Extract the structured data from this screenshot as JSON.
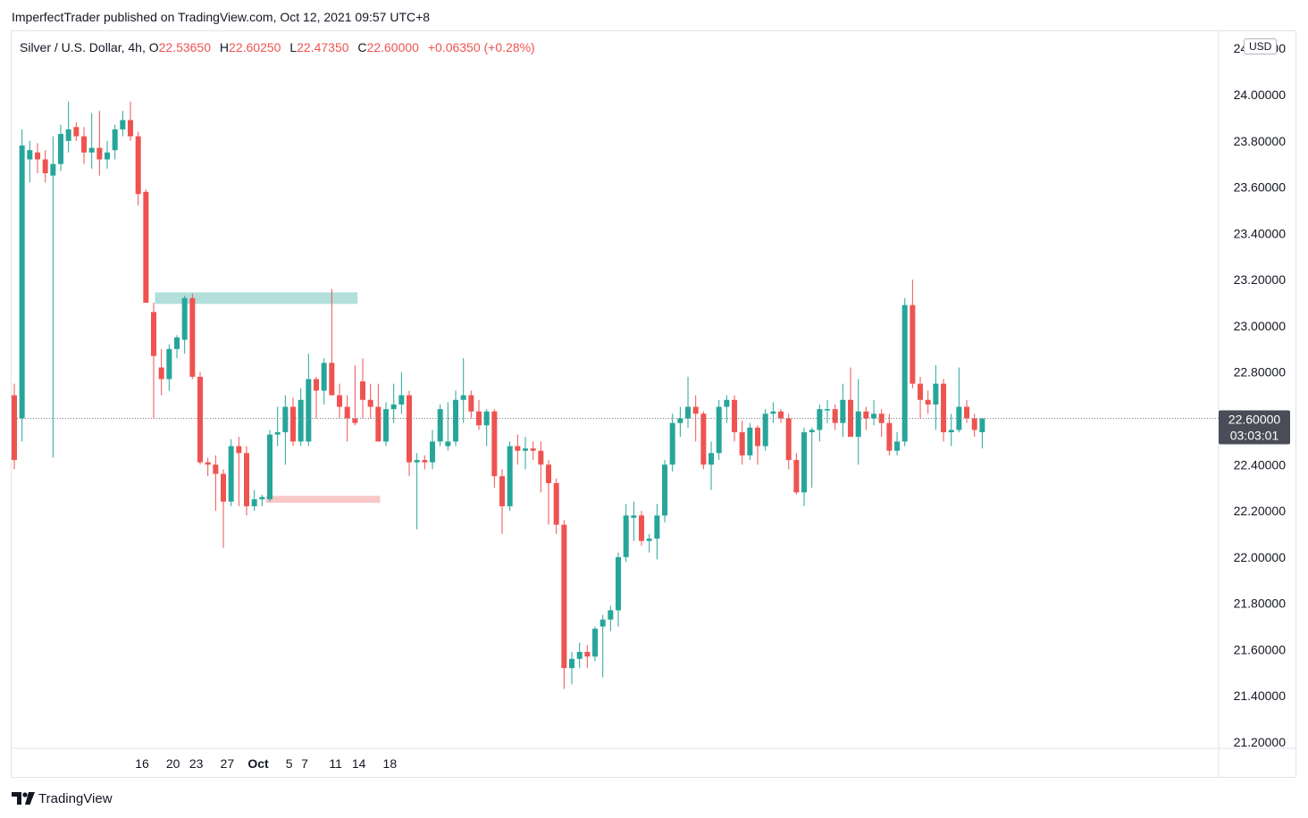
{
  "header": {
    "published_line": "ImperfectTrader published on TradingView.com, Oct 12, 2021 09:57 UTC+8"
  },
  "legend": {
    "symbol": "Silver / U.S. Dollar, 4h,",
    "open_label": "O",
    "open_value": "22.53650",
    "high_label": "H",
    "high_value": "22.60250",
    "low_label": "L",
    "low_value": "22.47350",
    "close_label": "C",
    "close_value": "22.60000",
    "change": "+0.06350 (+0.28%)"
  },
  "currency_badge": "USD",
  "footer": {
    "brand": "TradingView"
  },
  "colors": {
    "up": "#26a69a",
    "down": "#ef5350",
    "resistance_zone": "#b2dfdb",
    "support_zone": "#f8c8c8",
    "price_label_bg": "#4a4d57",
    "grid": "#e0e3eb"
  },
  "chart_data": {
    "type": "candlestick",
    "timeframe": "4h",
    "y_axis": {
      "range": [
        21.2,
        24.2
      ],
      "tick_labels": [
        "24.00000",
        "23.80000",
        "23.60000",
        "23.40000",
        "23.20000",
        "23.00000",
        "22.80000",
        "22.60000",
        "22.40000",
        "22.20000",
        "22.00000",
        "21.80000",
        "21.60000",
        "21.40000",
        "21.20000"
      ],
      "tick_values": [
        24.0,
        23.8,
        23.6,
        23.4,
        23.2,
        23.0,
        22.8,
        22.6,
        22.4,
        22.2,
        22.0,
        21.8,
        21.6,
        21.4,
        21.2
      ],
      "top_partial_label": "24.20000"
    },
    "x_axis": {
      "range": [
        13.5,
        19.25
      ],
      "tick_labels": [
        "16",
        "20",
        "23",
        "27",
        "Oct",
        "5",
        "7",
        "11",
        "14",
        "18"
      ],
      "tick_positions": [
        16.5,
        20.5,
        23.5,
        27.5,
        31.5,
        35.5,
        37.5,
        41.5,
        44.5,
        48.5
      ]
    },
    "last_price": {
      "value": 22.6,
      "label": "22.60000",
      "countdown": "03:03:01"
    },
    "zones": [
      {
        "name": "resistance",
        "from_x": 18.167,
        "to_x": 44.333,
        "low": 23.095,
        "high": 23.145
      },
      {
        "name": "support",
        "from_x": 32.5,
        "to_x": 47.25,
        "low": 22.235,
        "high": 22.265
      }
    ],
    "candles": [
      [
        22.7,
        22.75,
        22.38,
        22.42
      ],
      [
        22.6,
        23.85,
        22.5,
        23.78
      ],
      [
        23.72,
        23.8,
        23.62,
        23.76
      ],
      [
        23.75,
        23.79,
        23.66,
        23.72
      ],
      [
        23.72,
        23.76,
        23.62,
        23.66
      ],
      [
        23.65,
        23.82,
        22.43,
        23.7
      ],
      [
        23.7,
        23.87,
        23.67,
        23.83
      ],
      [
        23.8,
        23.97,
        23.75,
        23.85
      ],
      [
        23.86,
        23.88,
        23.8,
        23.82
      ],
      [
        23.82,
        23.86,
        23.7,
        23.75
      ],
      [
        23.75,
        23.92,
        23.68,
        23.77
      ],
      [
        23.77,
        23.93,
        23.65,
        23.72
      ],
      [
        23.72,
        23.8,
        23.68,
        23.75
      ],
      [
        23.76,
        23.87,
        23.72,
        23.85
      ],
      [
        23.85,
        23.93,
        23.82,
        23.89
      ],
      [
        23.89,
        23.97,
        23.8,
        23.82
      ],
      [
        23.82,
        23.84,
        23.52,
        23.57
      ],
      [
        23.58,
        23.59,
        23.1,
        23.1
      ],
      [
        23.06,
        23.1,
        22.6,
        22.87
      ],
      [
        22.82,
        22.9,
        22.7,
        22.77
      ],
      [
        22.77,
        22.92,
        22.72,
        22.9
      ],
      [
        22.9,
        22.96,
        22.86,
        22.95
      ],
      [
        22.94,
        23.13,
        22.88,
        23.12
      ],
      [
        23.12,
        23.14,
        22.77,
        22.78
      ],
      [
        22.78,
        22.8,
        22.4,
        22.41
      ],
      [
        22.41,
        22.43,
        22.35,
        22.4
      ],
      [
        22.4,
        22.44,
        22.2,
        22.36
      ],
      [
        22.36,
        22.38,
        22.04,
        22.24
      ],
      [
        22.24,
        22.51,
        22.22,
        22.48
      ],
      [
        22.48,
        22.52,
        22.22,
        22.45
      ],
      [
        22.45,
        22.48,
        22.18,
        22.22
      ],
      [
        22.22,
        22.29,
        22.2,
        22.25
      ],
      [
        22.25,
        22.27,
        22.22,
        22.26
      ],
      [
        22.25,
        22.55,
        22.24,
        22.53
      ],
      [
        22.53,
        22.65,
        22.48,
        22.54
      ],
      [
        22.54,
        22.7,
        22.4,
        22.65
      ],
      [
        22.65,
        22.69,
        22.48,
        22.5
      ],
      [
        22.5,
        22.73,
        22.48,
        22.68
      ],
      [
        22.5,
        22.88,
        22.48,
        22.77
      ],
      [
        22.77,
        22.78,
        22.6,
        22.72
      ],
      [
        22.72,
        22.86,
        22.66,
        22.84
      ],
      [
        22.84,
        23.16,
        22.7,
        22.7
      ],
      [
        22.7,
        22.75,
        22.6,
        22.65
      ],
      [
        22.65,
        22.7,
        22.5,
        22.6
      ],
      [
        22.6,
        22.83,
        22.57,
        22.58
      ],
      [
        22.76,
        22.86,
        22.6,
        22.68
      ],
      [
        22.68,
        22.75,
        22.6,
        22.65
      ],
      [
        22.65,
        22.75,
        22.52,
        22.5
      ],
      [
        22.5,
        22.67,
        22.48,
        22.64
      ],
      [
        22.64,
        22.75,
        22.58,
        22.66
      ],
      [
        22.66,
        22.8,
        22.62,
        22.7
      ],
      [
        22.7,
        22.72,
        22.35,
        22.41
      ],
      [
        22.41,
        22.45,
        22.12,
        22.42
      ],
      [
        22.42,
        22.44,
        22.38,
        22.41
      ],
      [
        22.41,
        22.55,
        22.38,
        22.5
      ],
      [
        22.5,
        22.66,
        22.48,
        22.64
      ],
      [
        22.48,
        22.67,
        22.46,
        22.5
      ],
      [
        22.5,
        22.72,
        22.48,
        22.68
      ],
      [
        22.68,
        22.86,
        22.58,
        22.7
      ],
      [
        22.7,
        22.72,
        22.6,
        22.63
      ],
      [
        22.63,
        22.68,
        22.55,
        22.57
      ],
      [
        22.57,
        22.64,
        22.48,
        22.63
      ],
      [
        22.63,
        22.64,
        22.3,
        22.35
      ],
      [
        22.35,
        22.38,
        22.1,
        22.22
      ],
      [
        22.22,
        22.5,
        22.2,
        22.48
      ],
      [
        22.48,
        22.53,
        22.4,
        22.46
      ],
      [
        22.46,
        22.52,
        22.38,
        22.47
      ],
      [
        22.47,
        22.5,
        22.42,
        22.46
      ],
      [
        22.46,
        22.5,
        22.28,
        22.4
      ],
      [
        22.4,
        22.42,
        22.14,
        22.32
      ],
      [
        22.32,
        22.34,
        22.1,
        22.14
      ],
      [
        22.14,
        22.16,
        21.43,
        21.52
      ],
      [
        21.52,
        21.59,
        21.45,
        21.56
      ],
      [
        21.56,
        21.63,
        21.52,
        21.59
      ],
      [
        21.59,
        21.62,
        21.52,
        21.57
      ],
      [
        21.57,
        21.7,
        21.55,
        21.69
      ],
      [
        21.7,
        21.75,
        21.48,
        21.73
      ],
      [
        21.73,
        21.79,
        21.68,
        21.77
      ],
      [
        21.77,
        22.02,
        21.7,
        22.0
      ],
      [
        22.0,
        22.23,
        21.98,
        22.18
      ],
      [
        22.17,
        22.24,
        22.07,
        22.18
      ],
      [
        22.18,
        22.2,
        22.05,
        22.07
      ],
      [
        22.07,
        22.1,
        22.02,
        22.08
      ],
      [
        22.08,
        22.23,
        21.99,
        22.18
      ],
      [
        22.18,
        22.42,
        22.15,
        22.4
      ],
      [
        22.4,
        22.62,
        22.37,
        22.58
      ],
      [
        22.58,
        22.65,
        22.52,
        22.6
      ],
      [
        22.6,
        22.78,
        22.56,
        22.65
      ],
      [
        22.65,
        22.7,
        22.5,
        22.62
      ],
      [
        22.62,
        22.63,
        22.38,
        22.4
      ],
      [
        22.4,
        22.5,
        22.29,
        22.45
      ],
      [
        22.45,
        22.68,
        22.42,
        22.65
      ],
      [
        22.65,
        22.7,
        22.58,
        22.68
      ],
      [
        22.68,
        22.7,
        22.5,
        22.54
      ],
      [
        22.54,
        22.59,
        22.4,
        22.44
      ],
      [
        22.44,
        22.58,
        22.42,
        22.56
      ],
      [
        22.56,
        22.57,
        22.4,
        22.48
      ],
      [
        22.48,
        22.64,
        22.46,
        22.62
      ],
      [
        22.62,
        22.67,
        22.58,
        22.63
      ],
      [
        22.63,
        22.64,
        22.58,
        22.6
      ],
      [
        22.6,
        22.62,
        22.38,
        22.42
      ],
      [
        22.42,
        22.45,
        22.27,
        22.28
      ],
      [
        22.28,
        22.56,
        22.22,
        22.54
      ],
      [
        22.54,
        22.56,
        22.3,
        22.55
      ],
      [
        22.55,
        22.66,
        22.5,
        22.64
      ],
      [
        22.64,
        22.68,
        22.58,
        22.64
      ],
      [
        22.64,
        22.66,
        22.55,
        22.58
      ],
      [
        22.58,
        22.75,
        22.52,
        22.68
      ],
      [
        22.68,
        22.82,
        22.53,
        22.52
      ],
      [
        22.52,
        22.77,
        22.4,
        22.63
      ],
      [
        22.63,
        22.65,
        22.55,
        22.6
      ],
      [
        22.6,
        22.68,
        22.57,
        22.62
      ],
      [
        22.62,
        22.64,
        22.52,
        22.58
      ],
      [
        22.58,
        22.62,
        22.44,
        22.46
      ],
      [
        22.46,
        22.54,
        22.44,
        22.5
      ],
      [
        22.5,
        23.12,
        22.48,
        23.09
      ],
      [
        23.09,
        23.2,
        22.73,
        22.75
      ],
      [
        22.75,
        22.78,
        22.6,
        22.68
      ],
      [
        22.68,
        22.72,
        22.62,
        22.66
      ],
      [
        22.66,
        22.83,
        22.55,
        22.75
      ],
      [
        22.75,
        22.77,
        22.5,
        22.54
      ],
      [
        22.54,
        22.62,
        22.48,
        22.55
      ],
      [
        22.55,
        22.82,
        22.54,
        22.65
      ],
      [
        22.65,
        22.68,
        22.58,
        22.6
      ],
      [
        22.6,
        22.62,
        22.52,
        22.55
      ],
      [
        22.54,
        22.6,
        22.47,
        22.6
      ]
    ]
  }
}
